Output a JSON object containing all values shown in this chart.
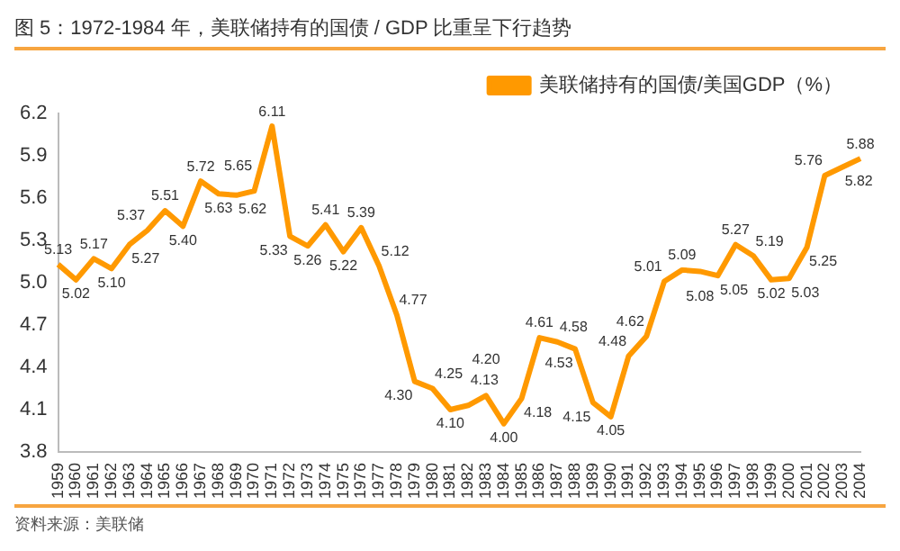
{
  "chart_data": {
    "type": "line",
    "title": "图 5：1972-1984 年，美联储持有的国债 / GDP 比重呈下行趋势",
    "categories": [
      "1959",
      "1960",
      "1961",
      "1962",
      "1963",
      "1964",
      "1965",
      "1966",
      "1967",
      "1968",
      "1969",
      "1970",
      "1971",
      "1972",
      "1973",
      "1974",
      "1975",
      "1976",
      "1977",
      "1978",
      "1979",
      "1980",
      "1981",
      "1982",
      "1983",
      "1984",
      "1985",
      "1986",
      "1987",
      "1988",
      "1989",
      "1990",
      "1991",
      "1992",
      "1993",
      "1994",
      "1995",
      "1996",
      "1997",
      "1998",
      "1999",
      "2000",
      "2001",
      "2002",
      "2003",
      "2004"
    ],
    "series": [
      {
        "name": "美联储持有的国债/美国GDP（%）",
        "color": "#ff9900",
        "values": [
          5.13,
          5.02,
          5.17,
          5.1,
          5.27,
          5.37,
          5.51,
          5.4,
          5.72,
          5.63,
          5.62,
          5.65,
          6.11,
          5.33,
          5.26,
          5.41,
          5.22,
          5.39,
          5.12,
          4.77,
          4.3,
          4.25,
          4.1,
          4.13,
          4.2,
          4.0,
          4.18,
          4.61,
          4.58,
          4.53,
          4.15,
          4.05,
          4.48,
          4.62,
          5.01,
          5.09,
          5.08,
          5.05,
          5.27,
          5.19,
          5.02,
          5.03,
          5.25,
          5.76,
          5.82,
          5.88
        ],
        "value_labels": [
          "5.13",
          "5.02",
          "5.17",
          "5.10",
          "5.27",
          "5.37",
          "5.51",
          "5.40",
          "5.72",
          "5.63",
          "5.62",
          "5.65",
          "6.11",
          "5.33",
          "5.26",
          "5.41",
          "5.22",
          "5.39",
          "5.12",
          "4.77",
          "4.30",
          "4.25",
          "4.10",
          "4.13",
          "4.20",
          "4.00",
          "4.18",
          "4.61",
          "4.58",
          "4.53",
          "4.15",
          "4.05",
          "4.48",
          "4.62",
          "5.01",
          "5.09",
          "5.08",
          "5.05",
          "5.27",
          "5.19",
          "5.02",
          "5.03",
          "5.25",
          "5.76",
          "5.82",
          "5.88"
        ]
      }
    ],
    "ylim": [
      3.8,
      6.2
    ],
    "yticks": [
      {
        "value": 3.8,
        "label": "3.8"
      },
      {
        "value": 4.1,
        "label": "4.1"
      },
      {
        "value": 4.4,
        "label": "4.4"
      },
      {
        "value": 4.7,
        "label": "4.7"
      },
      {
        "value": 5.0,
        "label": "5.0"
      },
      {
        "value": 5.3,
        "label": "5.3"
      },
      {
        "value": 5.6,
        "label": "5.6"
      },
      {
        "value": 5.9,
        "label": "5.9"
      },
      {
        "value": 6.2,
        "label": "6.2"
      }
    ],
    "grid": false,
    "legend": "top right",
    "marker": "none",
    "line_style": "solid",
    "annotations": [
      "资料来源：美联储"
    ]
  }
}
